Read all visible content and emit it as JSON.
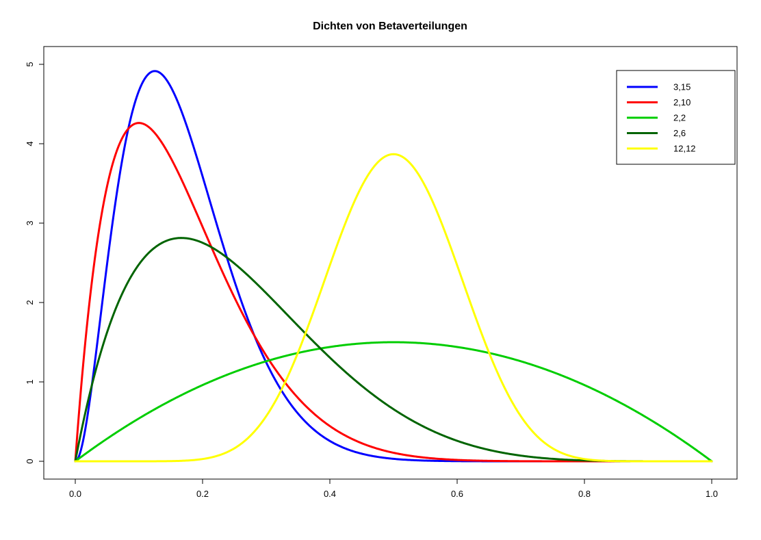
{
  "figure": {
    "background": "#FFFFFF",
    "axis_color": "#000000"
  },
  "chart_data": {
    "type": "line",
    "title": "Dichten von Betaverteilungen",
    "xlabel": "",
    "ylabel": "",
    "xlim": [
      0,
      1
    ],
    "ylim": [
      0,
      5
    ],
    "grid": false,
    "line_width": 3,
    "x_ticks": [
      0.0,
      0.2,
      0.4,
      0.6,
      0.8,
      1.0
    ],
    "x_tick_labels": [
      "0.0",
      "0.2",
      "0.4",
      "0.6",
      "0.8",
      "1.0"
    ],
    "y_ticks": [
      0,
      1,
      2,
      3,
      4,
      5
    ],
    "y_tick_labels": [
      "0",
      "1",
      "2",
      "3",
      "4",
      "5"
    ],
    "legend": {
      "position": "top-right",
      "entries": [
        "3,15",
        "2,10",
        "2,2",
        "2,6",
        "12,12"
      ]
    },
    "x": [
      0,
      0.05,
      0.1,
      0.15,
      0.2,
      0.25,
      0.3,
      0.35,
      0.4,
      0.45,
      0.5,
      0.55,
      0.6,
      0.65,
      0.7,
      0.75,
      0.8,
      0.85,
      0.9,
      0.95,
      1
    ],
    "series": [
      {
        "name": "3,15",
        "beta_params": [
          3,
          15
        ],
        "color": "#0000FF",
        "peak": {
          "x": 0.125,
          "y": 4.92
        },
        "values": [
          0,
          2.487,
          4.668,
          4.719,
          3.589,
          2.273,
          1.245,
          0.6,
          0.256,
          0.096,
          0.031,
          0.009,
          0.002,
          0.001,
          0,
          0,
          0,
          0,
          0,
          0,
          0
        ]
      },
      {
        "name": "2,10",
        "beta_params": [
          2,
          10
        ],
        "color": "#FF0000",
        "peak": {
          "x": 0.1,
          "y": 4.26
        },
        "values": [
          0,
          3.466,
          4.262,
          3.822,
          2.953,
          2.065,
          1.332,
          0.797,
          0.443,
          0.228,
          0.107,
          0.046,
          0.017,
          0.006,
          0.002,
          0,
          0,
          0,
          0,
          0,
          0
        ]
      },
      {
        "name": "2,2",
        "beta_params": [
          2,
          2
        ],
        "color": "#00CD00",
        "peak": {
          "x": 0.5,
          "y": 1.5
        },
        "values": [
          0,
          0.285,
          0.54,
          0.765,
          0.96,
          1.125,
          1.26,
          1.365,
          1.44,
          1.485,
          1.5,
          1.485,
          1.44,
          1.365,
          1.26,
          1.125,
          0.96,
          0.765,
          0.54,
          0.285,
          0
        ]
      },
      {
        "name": "2,6",
        "beta_params": [
          2,
          6
        ],
        "color": "#006400",
        "peak": {
          "x": 0.167,
          "y": 2.81
        },
        "values": [
          0,
          1.625,
          2.48,
          2.795,
          2.753,
          2.492,
          2.118,
          1.706,
          1.306,
          0.951,
          0.656,
          0.426,
          0.258,
          0.143,
          0.071,
          0.031,
          0.011,
          0.003,
          0,
          0,
          0
        ]
      },
      {
        "name": "12,12",
        "beta_params": [
          12,
          12
        ],
        "color": "#FFFF00",
        "peak": {
          "x": 0.5,
          "y": 3.87
        },
        "values": [
          0,
          0,
          0,
          0.002,
          0.029,
          0.163,
          0.567,
          1.366,
          2.463,
          3.453,
          3.868,
          3.453,
          2.463,
          1.366,
          0.567,
          0.163,
          0.029,
          0.002,
          0,
          0,
          0
        ]
      }
    ]
  }
}
